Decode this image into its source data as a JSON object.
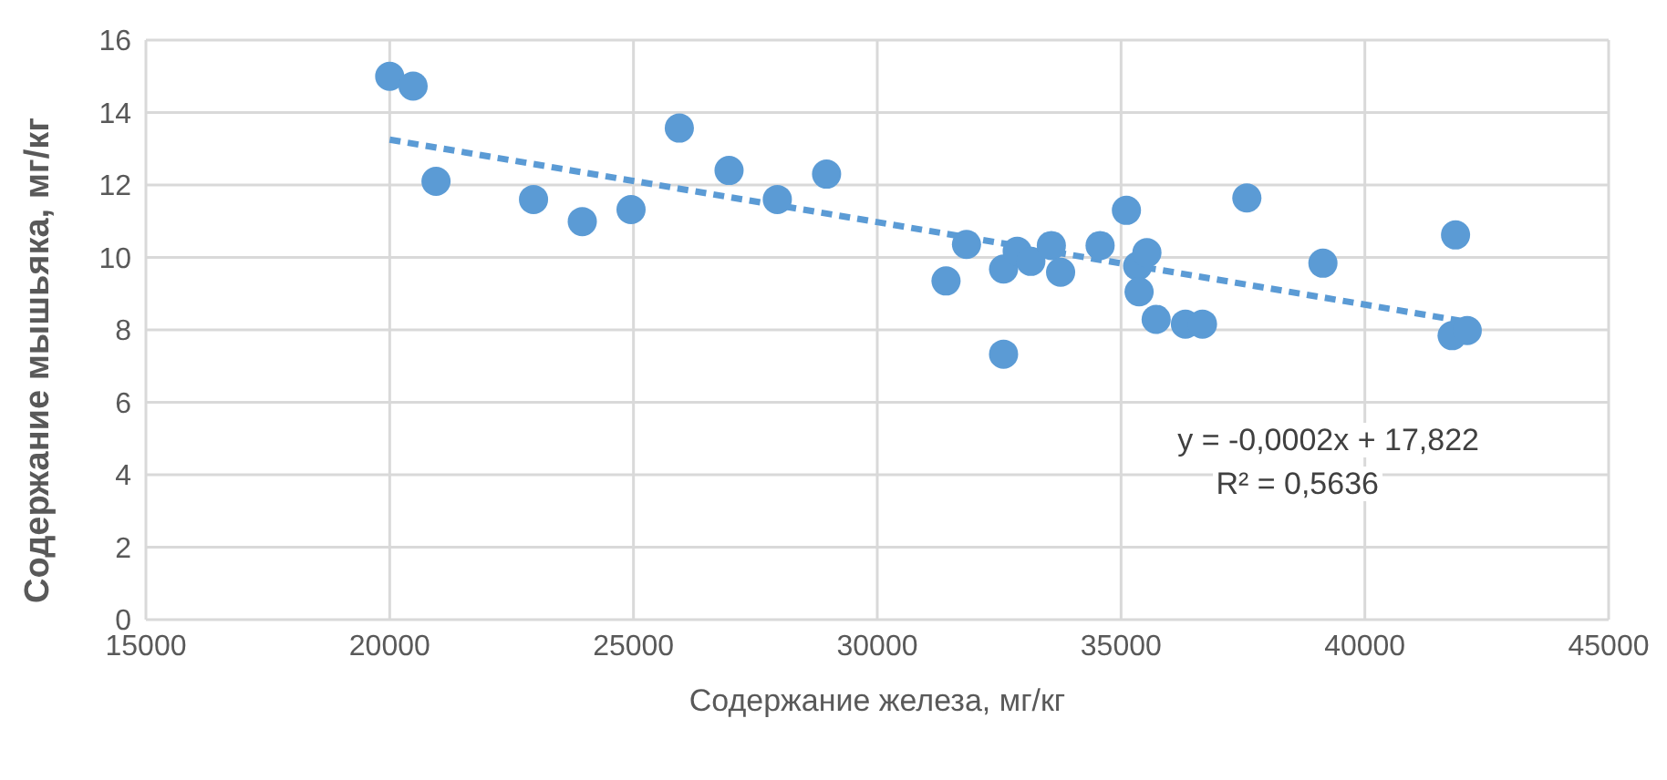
{
  "chart_data": {
    "type": "scatter",
    "xlabel": "Содержание железа, мг/кг",
    "ylabel": "Содержание мышьяка, мг/кг",
    "xlim": [
      15000,
      45000
    ],
    "xticks": [
      15000,
      20000,
      25000,
      30000,
      35000,
      40000,
      45000
    ],
    "ylim": [
      0,
      16
    ],
    "yticks": [
      0,
      2,
      4,
      6,
      8,
      10,
      12,
      14,
      16
    ],
    "grid": true,
    "marker": "circle",
    "series": [
      {
        "color": "#5b9bd5",
        "x": [
          20000,
          20480,
          20950,
          22950,
          23950,
          24950,
          25940,
          26960,
          27950,
          28960,
          31410,
          31830,
          32590,
          32590,
          32870,
          33150,
          33570,
          33760,
          34570,
          35110,
          35340,
          35530,
          35370,
          35720,
          36320,
          36670,
          37580,
          39140,
          41860,
          41790,
          42100
        ],
        "values": [
          15.0,
          14.73,
          12.1,
          11.6,
          10.99,
          11.32,
          13.57,
          12.4,
          11.6,
          12.3,
          9.35,
          10.36,
          9.68,
          7.33,
          10.17,
          9.89,
          10.33,
          9.59,
          10.33,
          11.3,
          9.76,
          10.13,
          9.05,
          8.29,
          8.16,
          8.16,
          11.64,
          9.84,
          10.62,
          7.84,
          7.98
        ]
      },
      {
        "type": "line",
        "color": "#5b9bd5",
        "line_style": "dashed",
        "marker": "none",
        "x": [
          20000,
          42100
        ],
        "values": [
          13.25,
          8.22
        ]
      }
    ],
    "annotations": [
      "y = -0,0002x + 17,822",
      "R² = 0,5636"
    ]
  }
}
